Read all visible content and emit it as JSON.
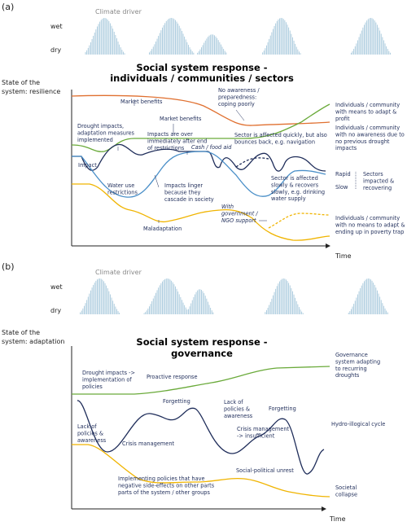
{
  "panel_a": {
    "label": "(a)",
    "climate_driver": "Climate driver",
    "wet": "wet",
    "dry": "dry",
    "title": [
      "Social system response -",
      "individuals / communities / sectors"
    ],
    "y_label": [
      "State of the",
      "system: resilience"
    ],
    "time": "Time",
    "annotations": [
      [
        "Market benefits"
      ],
      [
        "No awareness /",
        "preparedness:",
        "coping poorly"
      ],
      [
        "Market benefits"
      ],
      [
        "Drought impacts,",
        "adaptation measures",
        "implemented"
      ],
      [
        "Impacts are over",
        "immediately after end",
        "of restrictions"
      ],
      [
        "Sector is affected  quickly, but also",
        "bounces back, e.g. navigation"
      ],
      [
        "Cash / food aid"
      ],
      [
        "Impact"
      ],
      [
        "Water use",
        "restrictions"
      ],
      [
        "Impacts linger",
        "because they",
        "cascade in society"
      ],
      [
        "Sector is affected",
        "slowly & recovers",
        "slowly, e.g. drinking",
        "water supply"
      ],
      [
        "With",
        "government /",
        "NGO support"
      ],
      [
        "Maladaptation"
      ]
    ],
    "side": {
      "green": [
        "Individuals / community",
        "with means to adapt &",
        "profit"
      ],
      "orange": [
        "Individuals / community",
        "with no awareness due to",
        "no previous drought",
        "impacts"
      ],
      "rapid": "Rapid",
      "slow": "Slow",
      "sectors": [
        "Sectors",
        "impacted &",
        "recovering"
      ],
      "yellow": [
        "Individuals / community",
        "with no means to adapt &",
        "ending up in poverty trap"
      ]
    }
  },
  "panel_b": {
    "label": "(b)",
    "climate_driver": "Climate driver",
    "wet": "wet",
    "dry": "dry",
    "title": [
      "Social system response -",
      "governance"
    ],
    "y_label": [
      "State of the",
      "system: adaptation"
    ],
    "time": "Time",
    "annotations": [
      [
        "Drought impacts ->",
        "implementation of",
        "policies"
      ],
      [
        "Proactive response"
      ],
      [
        "Forgetting"
      ],
      [
        "Lack of",
        "policies &",
        "awareness"
      ],
      [
        "Forgetting"
      ],
      [
        "Lack of",
        "policies &",
        "awareness"
      ],
      [
        "Crisis management"
      ],
      [
        "Crisis management",
        "-> insufficient"
      ],
      [
        "Social-political unrest"
      ],
      [
        "Implementing policies that have",
        "negative side-effects on other parts",
        "parts of the system / other groups"
      ]
    ],
    "side": {
      "green": [
        "Governance",
        "system adapting",
        "to recurring",
        "droughts"
      ],
      "navy": [
        "Hydro-illogical cycle"
      ],
      "yellow": [
        "Societal",
        "collapse"
      ]
    }
  }
}
